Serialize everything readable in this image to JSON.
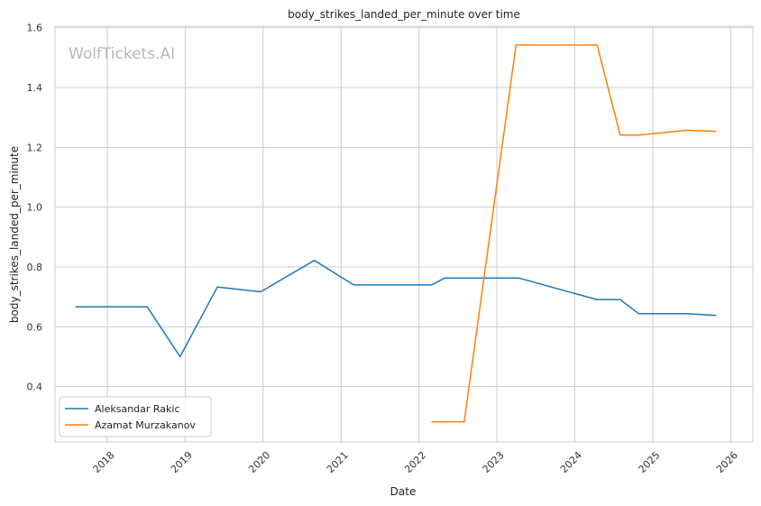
{
  "chart_data": {
    "type": "line",
    "title": "body_strikes_landed_per_minute over time",
    "xlabel": "Date",
    "ylabel": "body_strikes_landed_per_minute",
    "watermark": "WolfTickets.AI",
    "x_tick_labels": [
      "2018",
      "2019",
      "2020",
      "2021",
      "2022",
      "2023",
      "2024",
      "2025",
      "2026"
    ],
    "y_tick_labels": [
      "0.4",
      "0.6",
      "0.8",
      "1.0",
      "1.2",
      "1.4",
      "1.6"
    ],
    "xlim": [
      "2017-05-01",
      "2026-04-15"
    ],
    "ylim": [
      0.215,
      1.605
    ],
    "grid": true,
    "legend_position": "lower-left",
    "series": [
      {
        "name": "Aleksandar Rakic",
        "color": "#1f77b4",
        "points": [
          [
            "2017-08-05",
            0.667
          ],
          [
            "2018-07-07",
            0.667
          ],
          [
            "2018-12-08",
            0.5
          ],
          [
            "2019-06-01",
            0.733
          ],
          [
            "2019-12-21",
            0.717
          ],
          [
            "2020-08-29",
            0.822
          ],
          [
            "2021-03-01",
            0.74
          ],
          [
            "2022-03-01",
            0.74
          ],
          [
            "2022-05-01",
            0.763
          ],
          [
            "2023-04-15",
            0.763
          ],
          [
            "2024-04-13",
            0.691
          ],
          [
            "2024-08-01",
            0.691
          ],
          [
            "2024-10-26",
            0.644
          ],
          [
            "2025-06-10",
            0.644
          ],
          [
            "2025-10-25",
            0.638
          ]
        ]
      },
      {
        "name": "Azamat Murzakanov",
        "color": "#ff7f0e",
        "points": [
          [
            "2022-03-01",
            0.282
          ],
          [
            "2022-08-01",
            0.282
          ],
          [
            "2023-04-01",
            1.542
          ],
          [
            "2024-04-15",
            1.542
          ],
          [
            "2024-08-01",
            1.241
          ],
          [
            "2024-10-26",
            1.241
          ],
          [
            "2025-06-15",
            1.257
          ],
          [
            "2025-10-25",
            1.253
          ]
        ]
      }
    ]
  }
}
